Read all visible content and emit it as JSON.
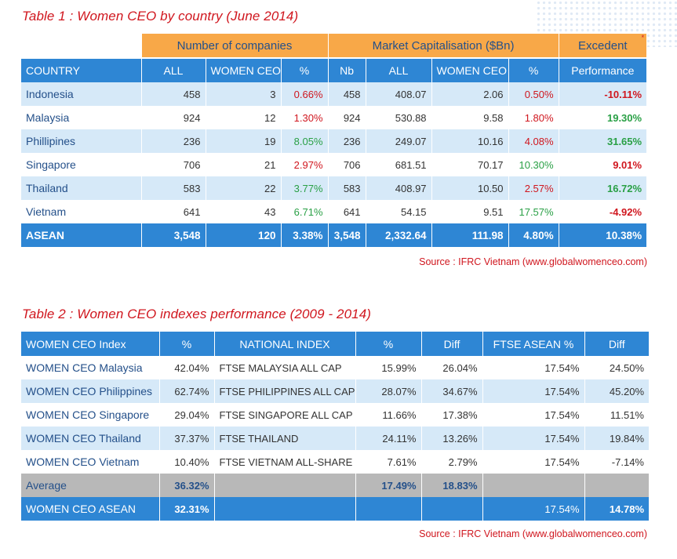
{
  "table1": {
    "title": "Table 1 : Women CEO by country (June 2014)",
    "group_headers": {
      "companies": "Number of companies",
      "market_cap": "Market Capitalisation ($Bn)",
      "excedent": "Excedent",
      "excedent_mark": "*"
    },
    "columns": [
      "COUNTRY",
      "ALL",
      "WOMEN CEO",
      "%",
      "Nb",
      "ALL",
      "WOMEN CEO",
      "%",
      "Performance"
    ],
    "rows": [
      {
        "country": "Indonesia",
        "all": "458",
        "women": "3",
        "pct": "0.66%",
        "nb": "458",
        "cap_all": "408.07",
        "cap_women": "2.06",
        "cap_pct": "0.50%",
        "perf": "-10.11%"
      },
      {
        "country": "Malaysia",
        "all": "924",
        "women": "12",
        "pct": "1.30%",
        "nb": "924",
        "cap_all": "530.88",
        "cap_women": "9.58",
        "cap_pct": "1.80%",
        "perf": "19.30%"
      },
      {
        "country": "Phillipines",
        "all": "236",
        "women": "19",
        "pct": "8.05%",
        "nb": "236",
        "cap_all": "249.07",
        "cap_women": "10.16",
        "cap_pct": "4.08%",
        "perf": "31.65%"
      },
      {
        "country": "Singapore",
        "all": "706",
        "women": "21",
        "pct": "2.97%",
        "nb": "706",
        "cap_all": "681.51",
        "cap_women": "70.17",
        "cap_pct": "10.30%",
        "perf": "9.01%"
      },
      {
        "country": "Thailand",
        "all": "583",
        "women": "22",
        "pct": "3.77%",
        "nb": "583",
        "cap_all": "408.97",
        "cap_women": "10.50",
        "cap_pct": "2.57%",
        "perf": "16.72%"
      },
      {
        "country": "Vietnam",
        "all": "641",
        "women": "43",
        "pct": "6.71%",
        "nb": "641",
        "cap_all": "54.15",
        "cap_women": "9.51",
        "cap_pct": "17.57%",
        "perf": "-4.92%"
      }
    ],
    "total": {
      "country": "ASEAN",
      "all": "3,548",
      "women": "120",
      "pct": "3.38%",
      "nb": "3,548",
      "cap_all": "2,332.64",
      "cap_women": "111.98",
      "cap_pct": "4.80%",
      "perf": "10.38%"
    },
    "source": "Source : IFRC Vietnam (www.globalwomenceo.com)"
  },
  "table2": {
    "title": "Table 2 : Women CEO indexes performance (2009 - 2014)",
    "columns": [
      "WOMEN CEO Index",
      "%",
      "NATIONAL INDEX",
      "%",
      "Diff",
      "FTSE ASEAN %",
      "Diff"
    ],
    "rows": [
      {
        "name": "WOMEN CEO Malaysia",
        "pct": "42.04%",
        "national": "FTSE MALAYSIA ALL CAP",
        "nat_pct": "15.99%",
        "diff": "26.04%",
        "ftse": "17.54%",
        "diff2": "24.50%"
      },
      {
        "name": "WOMEN CEO Philippines",
        "pct": "62.74%",
        "national": "FTSE PHILIPPINES ALL CAP",
        "nat_pct": "28.07%",
        "diff": "34.67%",
        "ftse": "17.54%",
        "diff2": "45.20%"
      },
      {
        "name": "WOMEN CEO Singapore",
        "pct": "29.04%",
        "national": "FTSE SINGAPORE ALL CAP",
        "nat_pct": "11.66%",
        "diff": "17.38%",
        "ftse": "17.54%",
        "diff2": "11.51%"
      },
      {
        "name": "WOMEN CEO Thailand",
        "pct": "37.37%",
        "national": "FTSE THAILAND",
        "nat_pct": "24.11%",
        "diff": "13.26%",
        "ftse": "17.54%",
        "diff2": "19.84%"
      },
      {
        "name": "WOMEN CEO Vietnam",
        "pct": "10.40%",
        "national": "FTSE VIETNAM ALL-SHARE",
        "nat_pct": "7.61%",
        "diff": "2.79%",
        "ftse": "17.54%",
        "diff2": "-7.14%"
      }
    ],
    "average": {
      "name": "Average",
      "pct": "36.32%",
      "national": "",
      "nat_pct": "17.49%",
      "diff": "18.83%",
      "ftse": "",
      "diff2": ""
    },
    "asean": {
      "name": "WOMEN CEO ASEAN",
      "pct": "32.31%",
      "national": "",
      "nat_pct": "",
      "diff": "",
      "ftse": "17.54%",
      "diff2": "14.78%"
    },
    "source": "Source : IFRC Vietnam (www.globalwomenceo.com)"
  },
  "colors": {
    "header_blue": "#2e86d4",
    "group_orange": "#f8a848",
    "row_light_blue": "#d6e9f8",
    "title_red": "#d0161e",
    "positive_green": "#2aa046",
    "average_gray": "#b8b8b8"
  }
}
